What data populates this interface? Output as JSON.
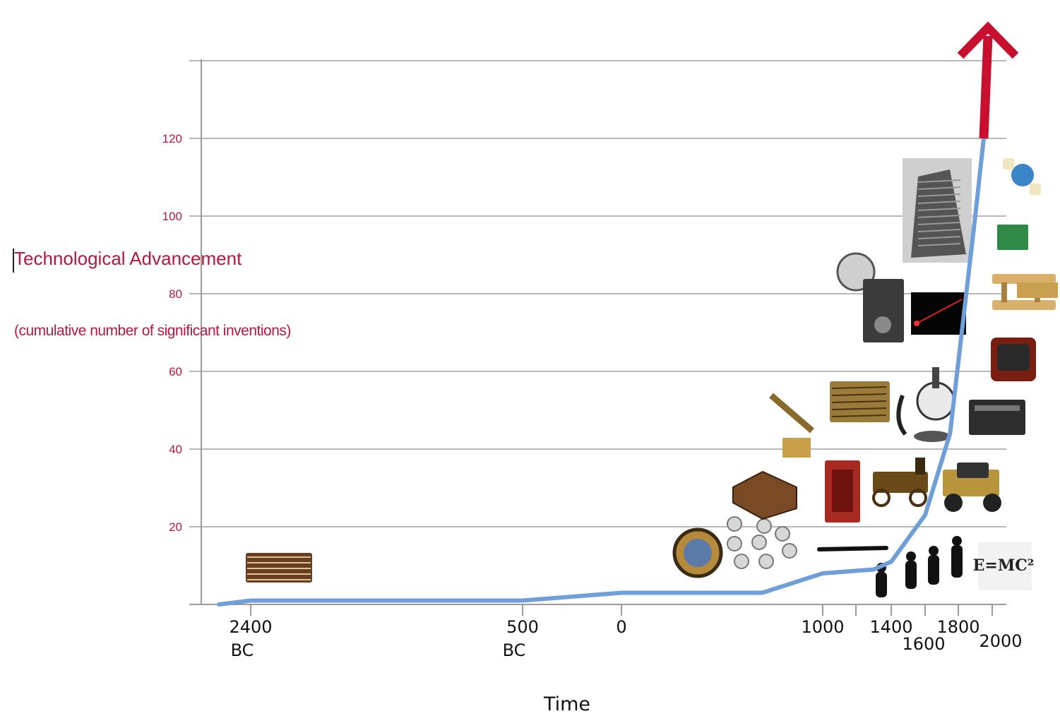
{
  "chart_data": {
    "type": "line",
    "title": "",
    "xlabel": "Time",
    "ylabel": "Technological Advancement",
    "ylabel_sub": "(cumulative number of significant inventions)",
    "y_ticks": [
      20,
      40,
      60,
      80,
      100,
      120
    ],
    "ylim": [
      0,
      140
    ],
    "x_tick_labels": [
      {
        "year": -2400,
        "label": "2400\nBC"
      },
      {
        "year": -500,
        "label": "500\nBC"
      },
      {
        "year": 0,
        "label": "0"
      },
      {
        "year": 1000,
        "label": "1000"
      },
      {
        "year": 1400,
        "label": "1400"
      },
      {
        "year": 1600,
        "label": "1600"
      },
      {
        "year": 1800,
        "label": "1800"
      },
      {
        "year": 2000,
        "label": "2000"
      }
    ],
    "grid": true,
    "series": [
      {
        "color": "#6f9fd8",
        "points": [
          {
            "x": -2600,
            "y": 0
          },
          {
            "x": -2400,
            "y": 1
          },
          {
            "x": -500,
            "y": 1
          },
          {
            "x": 0,
            "y": 3
          },
          {
            "x": 700,
            "y": 3
          },
          {
            "x": 1000,
            "y": 8
          },
          {
            "x": 1300,
            "y": 9
          },
          {
            "x": 1400,
            "y": 11
          },
          {
            "x": 1600,
            "y": 23
          },
          {
            "x": 1750,
            "y": 44
          },
          {
            "x": 1900,
            "y": 100
          },
          {
            "x": 1950,
            "y": 120
          }
        ]
      }
    ],
    "arrow": {
      "color": "#c8102e",
      "from_y": 120,
      "to_y": 150,
      "x": 1950
    }
  },
  "illustrations": [
    "abacus",
    "astrolabe",
    "ball-bearings",
    "calculating-machine",
    "telescope-microscope",
    "printing-press",
    "red-cabinet",
    "fountain-pen",
    "steam-carriage",
    "candlestick-telephone",
    "human-evolution",
    "camera",
    "laser",
    "skyscraper",
    "automobile",
    "radio",
    "television",
    "airplane",
    "circuit-board",
    "globe-network",
    "emc2-formula"
  ],
  "emc2_text": "E=MC²"
}
